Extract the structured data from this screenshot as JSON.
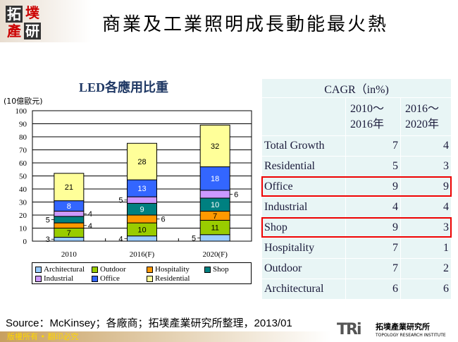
{
  "header": {
    "logo_text": "拓墣產研",
    "title": "商業及工業照明成長動能最火熱"
  },
  "chart_data": {
    "type": "bar",
    "stacked": true,
    "title": "LED各應用比重",
    "ylabel": "(10億歐元)",
    "ylim": [
      0,
      100
    ],
    "yticks": [
      0,
      10,
      20,
      30,
      40,
      50,
      60,
      70,
      80,
      90,
      100
    ],
    "grid": true,
    "legend_position": "bottom",
    "categories": [
      "2010",
      "2016(F)",
      "2020(F)"
    ],
    "series": [
      {
        "name": "Architectural",
        "color": "#99ccff",
        "values": [
          3,
          4,
          5
        ]
      },
      {
        "name": "Outdoor",
        "color": "#99cc00",
        "values": [
          7,
          10,
          11
        ]
      },
      {
        "name": "Hospitality",
        "color": "#ff9900",
        "values": [
          4,
          6,
          7
        ]
      },
      {
        "name": "Shop",
        "color": "#008080",
        "values": [
          5,
          9,
          10
        ]
      },
      {
        "name": "Industrial",
        "color": "#cc99ff",
        "values": [
          4,
          5,
          6
        ]
      },
      {
        "name": "Office",
        "color": "#3366ff",
        "values": [
          8,
          13,
          18
        ]
      },
      {
        "name": "Residential",
        "color": "#ffff99",
        "values": [
          21,
          28,
          32
        ]
      }
    ]
  },
  "table": {
    "title": "CAGR（in%)",
    "columns": [
      "2010～2016年",
      "2016～2020年"
    ],
    "rows": [
      {
        "label": "Total Growth",
        "v1": "7",
        "v2": "4",
        "highlight": false
      },
      {
        "label": "Residential",
        "v1": "5",
        "v2": "3",
        "highlight": false
      },
      {
        "label": "Office",
        "v1": "9",
        "v2": "9",
        "highlight": true
      },
      {
        "label": "Industrial",
        "v1": "4",
        "v2": "4",
        "highlight": false
      },
      {
        "label": "Shop",
        "v1": "9",
        "v2": "3",
        "highlight": true
      },
      {
        "label": "Hospitality",
        "v1": "7",
        "v2": "1",
        "highlight": false
      },
      {
        "label": "Outdoor",
        "v1": "7",
        "v2": "2",
        "highlight": false
      },
      {
        "label": "Architectural",
        "v1": "6",
        "v2": "6",
        "highlight": false
      }
    ],
    "highlight_color": "#ee0000"
  },
  "footer": {
    "source": "Source：McKinsey；各廠商；拓墣產業研究所整理，2013/01",
    "copyright": "版權所有 • 翻印必究",
    "org_logo": "TRi",
    "org_name": "拓墣產業研究所",
    "org_name_en": "TOPOLOGY RESEARCH INSTITUTE"
  }
}
